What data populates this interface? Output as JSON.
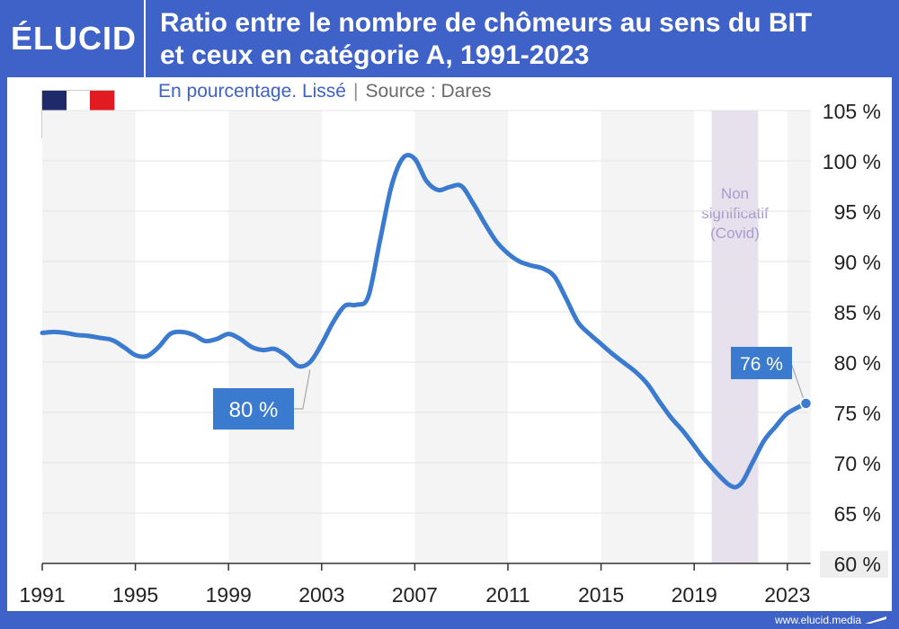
{
  "header": {
    "logo": "ÉLUCID",
    "title_line1": "Ratio entre le nombre de chômeurs au sens du BIT",
    "title_line2": "et ceux en catégorie A, 1991-2023"
  },
  "subtitle": {
    "description": "En pourcentage. Lissé",
    "separator": "|",
    "source": "Source : Dares"
  },
  "footer": {
    "brand": "www.elucid.media"
  },
  "colors": {
    "brand_blue": "#3f62c8",
    "line": "#3a7bd0",
    "callout": "#3a7bd0",
    "shade_band": "#f4f4f4",
    "covid_band": "#e7e1ee",
    "covid_text": "#a99ccf",
    "flag": [
      "#1f2a6b",
      "#ffffff",
      "#e21b22"
    ]
  },
  "chart_data": {
    "type": "line",
    "x_ticks": [
      "1991",
      "1995",
      "1999",
      "2003",
      "2007",
      "2011",
      "2015",
      "2019",
      "2023"
    ],
    "y_ticks": [
      "105 %",
      "100 %",
      "95 %",
      "90 %",
      "85 %",
      "80 %",
      "75 %",
      "70 %",
      "65 %",
      "60 %"
    ],
    "ylim": [
      60,
      105
    ],
    "xlim": [
      1991,
      2024
    ],
    "grid": true,
    "series": [
      {
        "x": [
          1991,
          1991.5,
          1992,
          1992.5,
          1993,
          1993.5,
          1994,
          1994.5,
          1995,
          1995.5,
          1996,
          1996.5,
          1997,
          1997.5,
          1998,
          1998.5,
          1999,
          1999.5,
          2000,
          2000.5,
          2001,
          2001.5,
          2002,
          2002.5,
          2003,
          2003.5,
          2004,
          2004.5,
          2005,
          2005.5,
          2006,
          2006.5,
          2007,
          2007.5,
          2008,
          2008.5,
          2009,
          2009.5,
          2010,
          2010.5,
          2011,
          2011.5,
          2012,
          2012.5,
          2013,
          2013.5,
          2014,
          2014.5,
          2015,
          2015.5,
          2016,
          2016.5,
          2017,
          2017.5,
          2018,
          2018.5,
          2019,
          2019.5,
          2020.5,
          2021,
          2021.5,
          2022,
          2022.5,
          2023,
          2023.8
        ],
        "y": [
          82.9,
          83.0,
          82.9,
          82.7,
          82.6,
          82.4,
          82.2,
          81.5,
          80.7,
          80.6,
          81.5,
          82.8,
          83.0,
          82.7,
          82.1,
          82.3,
          82.8,
          82.3,
          81.5,
          81.2,
          81.3,
          80.6,
          79.6,
          80.0,
          81.8,
          84.0,
          85.6,
          85.7,
          86.5,
          92.0,
          97.5,
          100.3,
          100.2,
          98.0,
          97.1,
          97.4,
          97.5,
          95.8,
          93.8,
          92.0,
          90.8,
          90.0,
          89.6,
          89.3,
          88.5,
          86.3,
          84.0,
          82.8,
          81.8,
          80.8,
          79.9,
          79.0,
          77.8,
          76.1,
          74.5,
          73.2,
          71.7,
          70.2,
          67.8,
          67.9,
          70.0,
          72.2,
          73.6,
          74.9,
          75.9
        ]
      }
    ],
    "shaded_periods": [
      [
        1991,
        1995
      ],
      [
        1999,
        2003
      ],
      [
        2007,
        2011
      ],
      [
        2015,
        2019
      ],
      [
        2023,
        2024
      ]
    ],
    "covid_period": [
      2019.75,
      2021.75
    ],
    "covid_label": [
      "Non",
      "significatif",
      "(Covid)"
    ],
    "callouts": [
      {
        "text": "80 %",
        "x": 2002.5,
        "y": 79.6
      },
      {
        "text": "76 %",
        "x": 2023.8,
        "y": 75.9
      }
    ]
  }
}
